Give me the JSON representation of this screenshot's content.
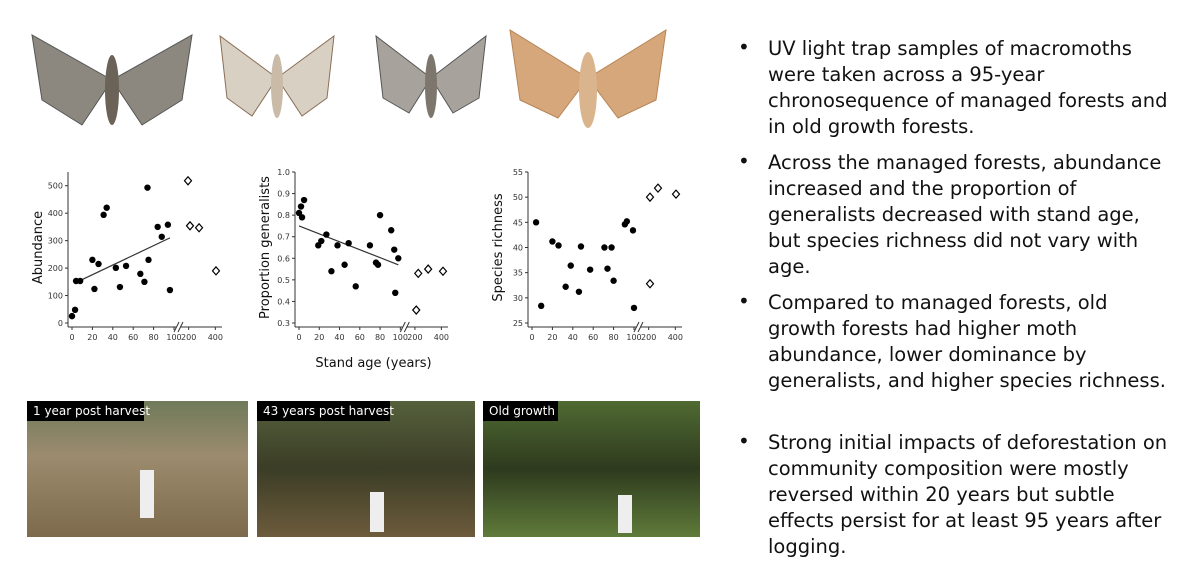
{
  "chart_data": [
    {
      "type": "scatter",
      "ylabel": "Abundance",
      "xlim": [
        0,
        450
      ],
      "xbreak": [
        100,
        150
      ],
      "ylim": [
        0,
        550
      ],
      "xticks": [
        0,
        20,
        40,
        60,
        80,
        100,
        200,
        400
      ],
      "yticks": [
        0,
        100,
        200,
        300,
        400,
        500
      ],
      "series": [
        {
          "marker": "circle",
          "color": "#000000",
          "x": [
            0,
            3,
            4,
            8,
            20,
            22,
            26,
            31,
            34,
            43,
            47,
            53,
            67,
            71,
            74,
            75,
            84,
            88,
            94,
            96
          ],
          "values": [
            25,
            48,
            153,
            153,
            230,
            124,
            215,
            394,
            420,
            201,
            131,
            208,
            179,
            150,
            493,
            230,
            350,
            314,
            358,
            120
          ]
        },
        {
          "marker": "diamond",
          "color": "#000000",
          "x": [
            195,
            210,
            278,
            405
          ],
          "values": [
            518,
            354,
            347,
            190
          ]
        }
      ],
      "trend": {
        "x": [
          3,
          96
        ],
        "y": [
          146,
          310
        ]
      }
    },
    {
      "type": "scatter",
      "ylabel": "Proportion generalists",
      "xlabel": "Stand age (years)",
      "xlim": [
        0,
        450
      ],
      "xbreak": [
        100,
        150
      ],
      "ylim": [
        0.3,
        1.0
      ],
      "xticks": [
        0,
        20,
        40,
        60,
        80,
        100,
        200,
        400
      ],
      "yticks": [
        0.3,
        0.4,
        0.5,
        0.6,
        0.7,
        0.8,
        0.9,
        {
          "value": 1,
          "label": "1.0"
        }
      ],
      "series": [
        {
          "marker": "circle",
          "color": "#000000",
          "x": [
            0,
            2,
            3,
            5,
            19,
            22,
            27,
            32,
            38,
            45,
            49,
            56,
            70,
            76,
            78,
            80,
            91,
            94,
            98,
            95
          ],
          "values": [
            0.81,
            0.84,
            0.79,
            0.87,
            0.66,
            0.68,
            0.71,
            0.54,
            0.66,
            0.57,
            0.67,
            0.47,
            0.66,
            0.58,
            0.57,
            0.8,
            0.73,
            0.64,
            0.6,
            0.44
          ]
        },
        {
          "marker": "diamond",
          "color": "#000000",
          "x": [
            210,
            225,
            300,
            412
          ],
          "values": [
            0.36,
            0.53,
            0.55,
            0.54
          ]
        }
      ],
      "trend": {
        "x": [
          0,
          98
        ],
        "y": [
          0.75,
          0.57
        ]
      }
    },
    {
      "type": "scatter",
      "ylabel": "Species richness",
      "xlim": [
        0,
        450
      ],
      "xbreak": [
        100,
        150
      ],
      "ylim": [
        25,
        55
      ],
      "xticks": [
        0,
        20,
        40,
        60,
        80,
        100,
        200,
        400
      ],
      "yticks": [
        25,
        30,
        35,
        40,
        45,
        50,
        55
      ],
      "series": [
        {
          "marker": "circle",
          "color": "#000000",
          "x": [
            4,
            9,
            20,
            26,
            33,
            38,
            46,
            48,
            57,
            71,
            74,
            78,
            80,
            91,
            93,
            99,
            100
          ],
          "values": [
            45,
            28.4,
            41.2,
            40.4,
            32.2,
            36.4,
            31.2,
            40.2,
            35.6,
            40,
            35.8,
            40,
            33.4,
            44.6,
            45.2,
            43.4,
            28
          ]
        },
        {
          "marker": "diamond",
          "color": "#000000",
          "x": [
            210,
            210,
            270,
            405
          ],
          "values": [
            32.8,
            50,
            51.8,
            50.6
          ]
        }
      ]
    }
  ],
  "photos": [
    "1 year post harvest",
    "43 years post harvest",
    "Old growth"
  ],
  "bullets": [
    "UV light trap samples of macromoths were taken across a 95-year chronosequence of managed forests and in old growth forests.",
    "Across the managed forests, abundance increased and the proportion of generalists decreased with stand age, but species richness did not vary with age.",
    "Compared to managed forests, old growth forests had higher moth abundance, lower dominance by generalists, and higher species richness.",
    "Strong initial impacts of deforestation on community composition were mostly reversed within 20 years but subtle effects persist for at least 95 years after logging."
  ]
}
